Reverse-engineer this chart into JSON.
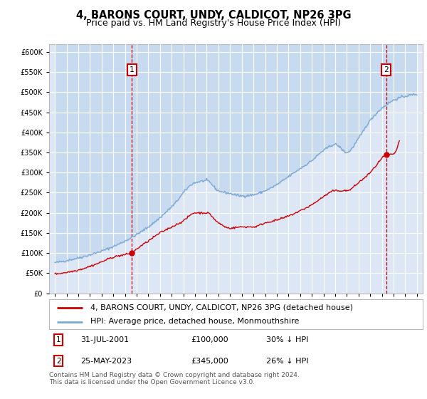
{
  "title": "4, BARONS COURT, UNDY, CALDICOT, NP26 3PG",
  "subtitle": "Price paid vs. HM Land Registry's House Price Index (HPI)",
  "ylim": [
    0,
    620000
  ],
  "yticks": [
    0,
    50000,
    100000,
    150000,
    200000,
    250000,
    300000,
    350000,
    400000,
    450000,
    500000,
    550000,
    600000
  ],
  "xlim_start": 1994.5,
  "xlim_end": 2026.5,
  "xticks": [
    1995,
    1996,
    1997,
    1998,
    1999,
    2000,
    2001,
    2002,
    2003,
    2004,
    2005,
    2006,
    2007,
    2008,
    2009,
    2010,
    2011,
    2012,
    2013,
    2014,
    2015,
    2016,
    2017,
    2018,
    2019,
    2020,
    2021,
    2022,
    2023,
    2024,
    2025,
    2026
  ],
  "background_color": "#dce6f5",
  "grid_color": "#ffffff",
  "hpi_color": "#7baad4",
  "hpi_fill_color": "#c5d8ee",
  "price_color": "#cc0000",
  "sale1_date": 2001.58,
  "sale1_price": 100000,
  "sale1_label": "1",
  "sale2_date": 2023.39,
  "sale2_price": 345000,
  "sale2_label": "2",
  "legend_line1": "4, BARONS COURT, UNDY, CALDICOT, NP26 3PG (detached house)",
  "legend_line2": "HPI: Average price, detached house, Monmouthshire",
  "ann1_date": "31-JUL-2001",
  "ann1_price": "£100,000",
  "ann1_pct": "30% ↓ HPI",
  "ann2_date": "25-MAY-2023",
  "ann2_price": "£345,000",
  "ann2_pct": "26% ↓ HPI",
  "footer": "Contains HM Land Registry data © Crown copyright and database right 2024.\nThis data is licensed under the Open Government Licence v3.0.",
  "title_fontsize": 10.5,
  "subtitle_fontsize": 9,
  "tick_fontsize": 7,
  "legend_fontsize": 8,
  "annotation_fontsize": 8,
  "footer_fontsize": 6.5
}
